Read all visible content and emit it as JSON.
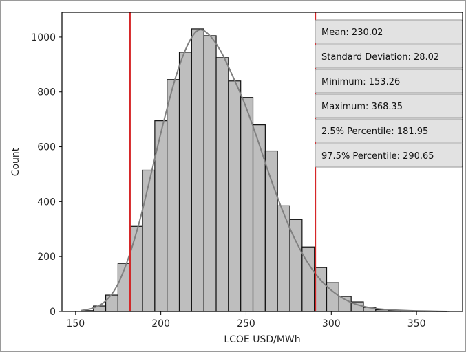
{
  "chart_data": {
    "type": "bar",
    "subtype": "histogram",
    "xlabel": "LCOE USD/MWh",
    "ylabel": "Count",
    "xlim": [
      142,
      377
    ],
    "ylim": [
      0,
      1090
    ],
    "xticks": [
      150,
      200,
      250,
      300,
      350
    ],
    "yticks": [
      0,
      200,
      400,
      600,
      800,
      1000
    ],
    "bar_color": "#bebebe",
    "bar_edge_color": "#111111",
    "kde_color": "#808080",
    "percentile_line_color": "#d62728",
    "percentile_lines": [
      181.95,
      290.65
    ],
    "bin_width": 7.2,
    "bins": [
      {
        "start": 153.26,
        "count": 3
      },
      {
        "start": 160.46,
        "count": 20
      },
      {
        "start": 167.66,
        "count": 60
      },
      {
        "start": 174.86,
        "count": 175
      },
      {
        "start": 182.06,
        "count": 310
      },
      {
        "start": 189.26,
        "count": 515
      },
      {
        "start": 196.46,
        "count": 695
      },
      {
        "start": 203.66,
        "count": 845
      },
      {
        "start": 210.86,
        "count": 945
      },
      {
        "start": 218.06,
        "count": 1030
      },
      {
        "start": 225.26,
        "count": 1005
      },
      {
        "start": 232.46,
        "count": 925
      },
      {
        "start": 239.66,
        "count": 840
      },
      {
        "start": 246.86,
        "count": 780
      },
      {
        "start": 254.06,
        "count": 680
      },
      {
        "start": 261.26,
        "count": 585
      },
      {
        "start": 268.46,
        "count": 385
      },
      {
        "start": 275.66,
        "count": 335
      },
      {
        "start": 282.86,
        "count": 235
      },
      {
        "start": 290.06,
        "count": 160
      },
      {
        "start": 297.26,
        "count": 105
      },
      {
        "start": 304.46,
        "count": 55
      },
      {
        "start": 311.66,
        "count": 35
      },
      {
        "start": 318.86,
        "count": 15
      },
      {
        "start": 326.06,
        "count": 6
      },
      {
        "start": 333.26,
        "count": 4
      },
      {
        "start": 340.46,
        "count": 2
      },
      {
        "start": 347.66,
        "count": 2
      },
      {
        "start": 354.86,
        "count": 1
      },
      {
        "start": 362.06,
        "count": 1
      }
    ],
    "kde_points": [
      [
        153,
        3
      ],
      [
        160,
        12
      ],
      [
        167,
        35
      ],
      [
        174,
        90
      ],
      [
        181,
        195
      ],
      [
        188,
        340
      ],
      [
        195,
        520
      ],
      [
        202,
        700
      ],
      [
        209,
        860
      ],
      [
        216,
        975
      ],
      [
        222,
        1025
      ],
      [
        228,
        1010
      ],
      [
        235,
        950
      ],
      [
        242,
        860
      ],
      [
        249,
        760
      ],
      [
        256,
        640
      ],
      [
        263,
        510
      ],
      [
        270,
        390
      ],
      [
        277,
        285
      ],
      [
        284,
        200
      ],
      [
        291,
        135
      ],
      [
        298,
        88
      ],
      [
        305,
        55
      ],
      [
        312,
        32
      ],
      [
        320,
        17
      ],
      [
        330,
        8
      ],
      [
        345,
        3
      ],
      [
        360,
        1
      ],
      [
        368,
        0
      ]
    ],
    "stats": [
      "Mean: 230.02",
      "Standard Deviation: 28.02",
      "Minimum: 153.26",
      "Maximum: 368.35",
      "2.5% Percentile: 181.95",
      "97.5% Percentile: 290.65"
    ]
  }
}
